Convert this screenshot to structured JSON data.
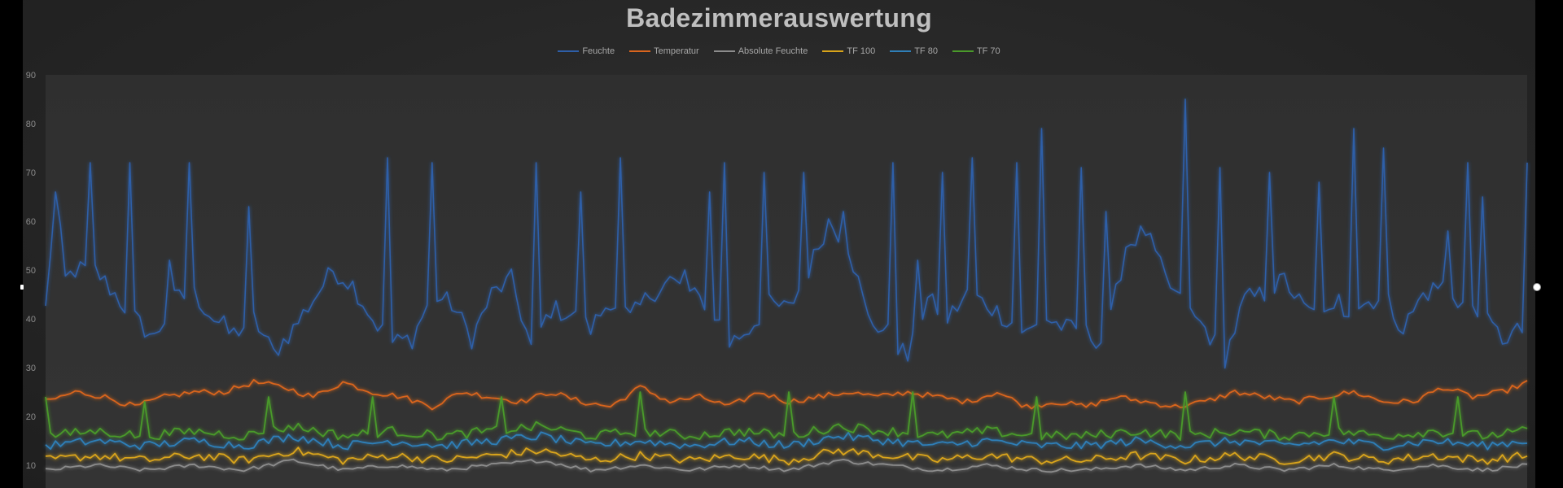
{
  "chart_data": {
    "type": "line",
    "title": "Badezimmerauswertung",
    "xlabel": "",
    "ylabel": "",
    "ylim": [
      8,
      90
    ],
    "yticks": [
      10,
      20,
      30,
      40,
      50,
      60,
      70,
      80,
      90
    ],
    "y_tick_labels": [
      "10",
      "20",
      "30",
      "40",
      "50",
      "60",
      "70",
      "80",
      "90"
    ],
    "grid": false,
    "legend_position": "top",
    "sample_count": 300,
    "series": [
      {
        "name": "Feuchte",
        "color": "#2e5fa8",
        "keypoints": [
          [
            0,
            42
          ],
          [
            2,
            66
          ],
          [
            4,
            48
          ],
          [
            6,
            50
          ],
          [
            10,
            50
          ],
          [
            14,
            45
          ],
          [
            18,
            40
          ],
          [
            22,
            36
          ],
          [
            26,
            44
          ],
          [
            30,
            45
          ],
          [
            34,
            40
          ],
          [
            38,
            37
          ],
          [
            42,
            40
          ],
          [
            46,
            33
          ],
          [
            50,
            38
          ],
          [
            54,
            44
          ],
          [
            58,
            50
          ],
          [
            62,
            47
          ],
          [
            66,
            40
          ],
          [
            70,
            35
          ],
          [
            74,
            36
          ],
          [
            78,
            45
          ],
          [
            82,
            43
          ],
          [
            86,
            36
          ],
          [
            90,
            45
          ],
          [
            94,
            48
          ],
          [
            98,
            34
          ],
          [
            102,
            42
          ],
          [
            106,
            41
          ],
          [
            110,
            38
          ],
          [
            114,
            44
          ],
          [
            118,
            40
          ],
          [
            122,
            45
          ],
          [
            126,
            48
          ],
          [
            130,
            45
          ],
          [
            134,
            43
          ],
          [
            138,
            35
          ],
          [
            142,
            38
          ],
          [
            146,
            43
          ],
          [
            150,
            42
          ],
          [
            154,
            50
          ],
          [
            158,
            60
          ],
          [
            162,
            55
          ],
          [
            166,
            40
          ],
          [
            170,
            37
          ],
          [
            174,
            32
          ],
          [
            178,
            44
          ],
          [
            182,
            40
          ],
          [
            186,
            45
          ],
          [
            190,
            43
          ],
          [
            194,
            40
          ],
          [
            198,
            37
          ],
          [
            202,
            40
          ],
          [
            206,
            38
          ],
          [
            210,
            37
          ],
          [
            214,
            35
          ],
          [
            218,
            55
          ],
          [
            222,
            58
          ],
          [
            226,
            48
          ],
          [
            230,
            42
          ],
          [
            234,
            38
          ],
          [
            238,
            32
          ],
          [
            242,
            44
          ],
          [
            246,
            45
          ],
          [
            250,
            48
          ],
          [
            254,
            42
          ],
          [
            258,
            40
          ],
          [
            262,
            42
          ],
          [
            266,
            43
          ],
          [
            270,
            45
          ],
          [
            274,
            38
          ],
          [
            278,
            45
          ],
          [
            282,
            47
          ],
          [
            286,
            43
          ],
          [
            290,
            40
          ],
          [
            294,
            36
          ],
          [
            299,
            38
          ]
        ],
        "spikes": [
          [
            2,
            66
          ],
          [
            12,
            72
          ],
          [
            22,
            72
          ],
          [
            32,
            52
          ],
          [
            37,
            72
          ],
          [
            48,
            37
          ],
          [
            53,
            63
          ],
          [
            70,
            45
          ],
          [
            88,
            73
          ],
          [
            100,
            72
          ],
          [
            127,
            72
          ],
          [
            138,
            66
          ],
          [
            149,
            73
          ],
          [
            165,
            50
          ],
          [
            172,
            66
          ],
          [
            176,
            72
          ],
          [
            186,
            70
          ],
          [
            196,
            70
          ],
          [
            206,
            62
          ],
          [
            219,
            72
          ],
          [
            226,
            52
          ],
          [
            232,
            70
          ],
          [
            240,
            73
          ],
          [
            251,
            72
          ],
          [
            258,
            79
          ],
          [
            268,
            71
          ],
          [
            274,
            62
          ],
          [
            294,
            85
          ],
          [
            303,
            71
          ],
          [
            316,
            70
          ],
          [
            329,
            68
          ],
          [
            334,
            45
          ],
          [
            338,
            79
          ],
          [
            346,
            75
          ],
          [
            362,
            58
          ],
          [
            368,
            72
          ],
          [
            372,
            65
          ],
          [
            383,
            72
          ]
        ]
      },
      {
        "name": "Temperatur",
        "color": "#d9651e",
        "keypoints": [
          [
            0,
            23
          ],
          [
            6,
            25
          ],
          [
            12,
            24
          ],
          [
            18,
            22
          ],
          [
            24,
            24
          ],
          [
            30,
            25
          ],
          [
            36,
            25
          ],
          [
            42,
            27
          ],
          [
            48,
            26
          ],
          [
            54,
            24
          ],
          [
            60,
            27
          ],
          [
            66,
            25
          ],
          [
            72,
            24
          ],
          [
            78,
            22
          ],
          [
            84,
            25
          ],
          [
            90,
            24
          ],
          [
            96,
            23
          ],
          [
            102,
            25
          ],
          [
            108,
            23
          ],
          [
            114,
            22
          ],
          [
            120,
            26
          ],
          [
            126,
            23
          ],
          [
            132,
            24
          ],
          [
            138,
            22
          ],
          [
            144,
            25
          ],
          [
            150,
            23
          ],
          [
            156,
            24
          ],
          [
            162,
            25
          ],
          [
            168,
            24
          ],
          [
            174,
            25
          ],
          [
            180,
            24
          ],
          [
            186,
            23
          ],
          [
            192,
            25
          ],
          [
            198,
            22
          ],
          [
            204,
            23
          ],
          [
            210,
            22
          ],
          [
            216,
            24
          ],
          [
            222,
            23
          ],
          [
            228,
            22
          ],
          [
            234,
            23
          ],
          [
            240,
            25
          ],
          [
            246,
            24
          ],
          [
            252,
            23
          ],
          [
            258,
            24
          ],
          [
            264,
            25
          ],
          [
            270,
            23
          ],
          [
            276,
            23
          ],
          [
            282,
            26
          ],
          [
            288,
            24
          ],
          [
            294,
            25
          ],
          [
            299,
            27
          ]
        ]
      },
      {
        "name": "Absolute Feuchte",
        "color": "#8c8c8c",
        "keypoints": [
          [
            0,
            9
          ],
          [
            10,
            10
          ],
          [
            20,
            9
          ],
          [
            30,
            10
          ],
          [
            40,
            9
          ],
          [
            50,
            11
          ],
          [
            60,
            9
          ],
          [
            70,
            10
          ],
          [
            80,
            9
          ],
          [
            90,
            10
          ],
          [
            100,
            11
          ],
          [
            110,
            9
          ],
          [
            120,
            10
          ],
          [
            130,
            9
          ],
          [
            140,
            10
          ],
          [
            150,
            9
          ],
          [
            160,
            11
          ],
          [
            170,
            10
          ],
          [
            180,
            9
          ],
          [
            190,
            10
          ],
          [
            200,
            9
          ],
          [
            210,
            9
          ],
          [
            220,
            10
          ],
          [
            230,
            9
          ],
          [
            240,
            10
          ],
          [
            250,
            9
          ],
          [
            260,
            10
          ],
          [
            270,
            9
          ],
          [
            280,
            10
          ],
          [
            290,
            9
          ],
          [
            299,
            10
          ]
        ]
      },
      {
        "name": "TF 100",
        "color": "#d9a41a",
        "keypoints": [
          [
            0,
            11
          ],
          [
            10,
            12
          ],
          [
            20,
            11
          ],
          [
            30,
            12
          ],
          [
            40,
            11
          ],
          [
            50,
            13
          ],
          [
            60,
            11
          ],
          [
            70,
            12
          ],
          [
            80,
            11
          ],
          [
            90,
            12
          ],
          [
            100,
            13
          ],
          [
            110,
            11
          ],
          [
            120,
            12
          ],
          [
            130,
            11
          ],
          [
            140,
            12
          ],
          [
            150,
            11
          ],
          [
            160,
            13
          ],
          [
            170,
            12
          ],
          [
            180,
            11
          ],
          [
            190,
            12
          ],
          [
            200,
            11
          ],
          [
            210,
            11
          ],
          [
            220,
            12
          ],
          [
            230,
            11
          ],
          [
            240,
            12
          ],
          [
            250,
            11
          ],
          [
            260,
            12
          ],
          [
            270,
            11
          ],
          [
            280,
            12
          ],
          [
            290,
            11
          ],
          [
            299,
            12
          ]
        ]
      },
      {
        "name": "TF 80",
        "color": "#2f7fb8",
        "keypoints": [
          [
            0,
            14
          ],
          [
            10,
            15
          ],
          [
            20,
            14
          ],
          [
            30,
            15
          ],
          [
            40,
            14
          ],
          [
            50,
            16
          ],
          [
            60,
            14
          ],
          [
            70,
            15
          ],
          [
            80,
            14
          ],
          [
            90,
            15
          ],
          [
            100,
            16
          ],
          [
            110,
            14
          ],
          [
            120,
            15
          ],
          [
            130,
            14
          ],
          [
            140,
            15
          ],
          [
            150,
            14
          ],
          [
            160,
            16
          ],
          [
            170,
            15
          ],
          [
            180,
            14
          ],
          [
            190,
            15
          ],
          [
            200,
            14
          ],
          [
            210,
            14
          ],
          [
            220,
            15
          ],
          [
            230,
            14
          ],
          [
            240,
            15
          ],
          [
            250,
            14
          ],
          [
            260,
            15
          ],
          [
            270,
            14
          ],
          [
            280,
            15
          ],
          [
            290,
            14
          ],
          [
            299,
            15
          ]
        ]
      },
      {
        "name": "TF 70",
        "color": "#4a9a2a",
        "keypoints": [
          [
            0,
            16
          ],
          [
            10,
            17
          ],
          [
            20,
            16
          ],
          [
            30,
            17
          ],
          [
            40,
            16
          ],
          [
            50,
            18
          ],
          [
            60,
            16
          ],
          [
            70,
            17
          ],
          [
            80,
            16
          ],
          [
            90,
            17
          ],
          [
            100,
            18
          ],
          [
            110,
            16
          ],
          [
            120,
            17
          ],
          [
            130,
            16
          ],
          [
            140,
            17
          ],
          [
            150,
            16
          ],
          [
            160,
            18
          ],
          [
            170,
            17
          ],
          [
            180,
            16
          ],
          [
            190,
            17
          ],
          [
            200,
            16
          ],
          [
            210,
            16
          ],
          [
            220,
            17
          ],
          [
            230,
            16
          ],
          [
            240,
            17
          ],
          [
            250,
            16
          ],
          [
            260,
            17
          ],
          [
            270,
            16
          ],
          [
            280,
            17
          ],
          [
            290,
            16
          ],
          [
            299,
            17
          ]
        ],
        "spikes": [
          [
            0,
            24
          ],
          [
            20,
            23
          ],
          [
            45,
            24
          ],
          [
            66,
            24
          ],
          [
            92,
            24
          ],
          [
            120,
            25
          ],
          [
            150,
            25
          ],
          [
            175,
            25
          ],
          [
            200,
            24
          ],
          [
            230,
            25
          ],
          [
            260,
            24
          ],
          [
            285,
            24
          ]
        ]
      }
    ]
  }
}
